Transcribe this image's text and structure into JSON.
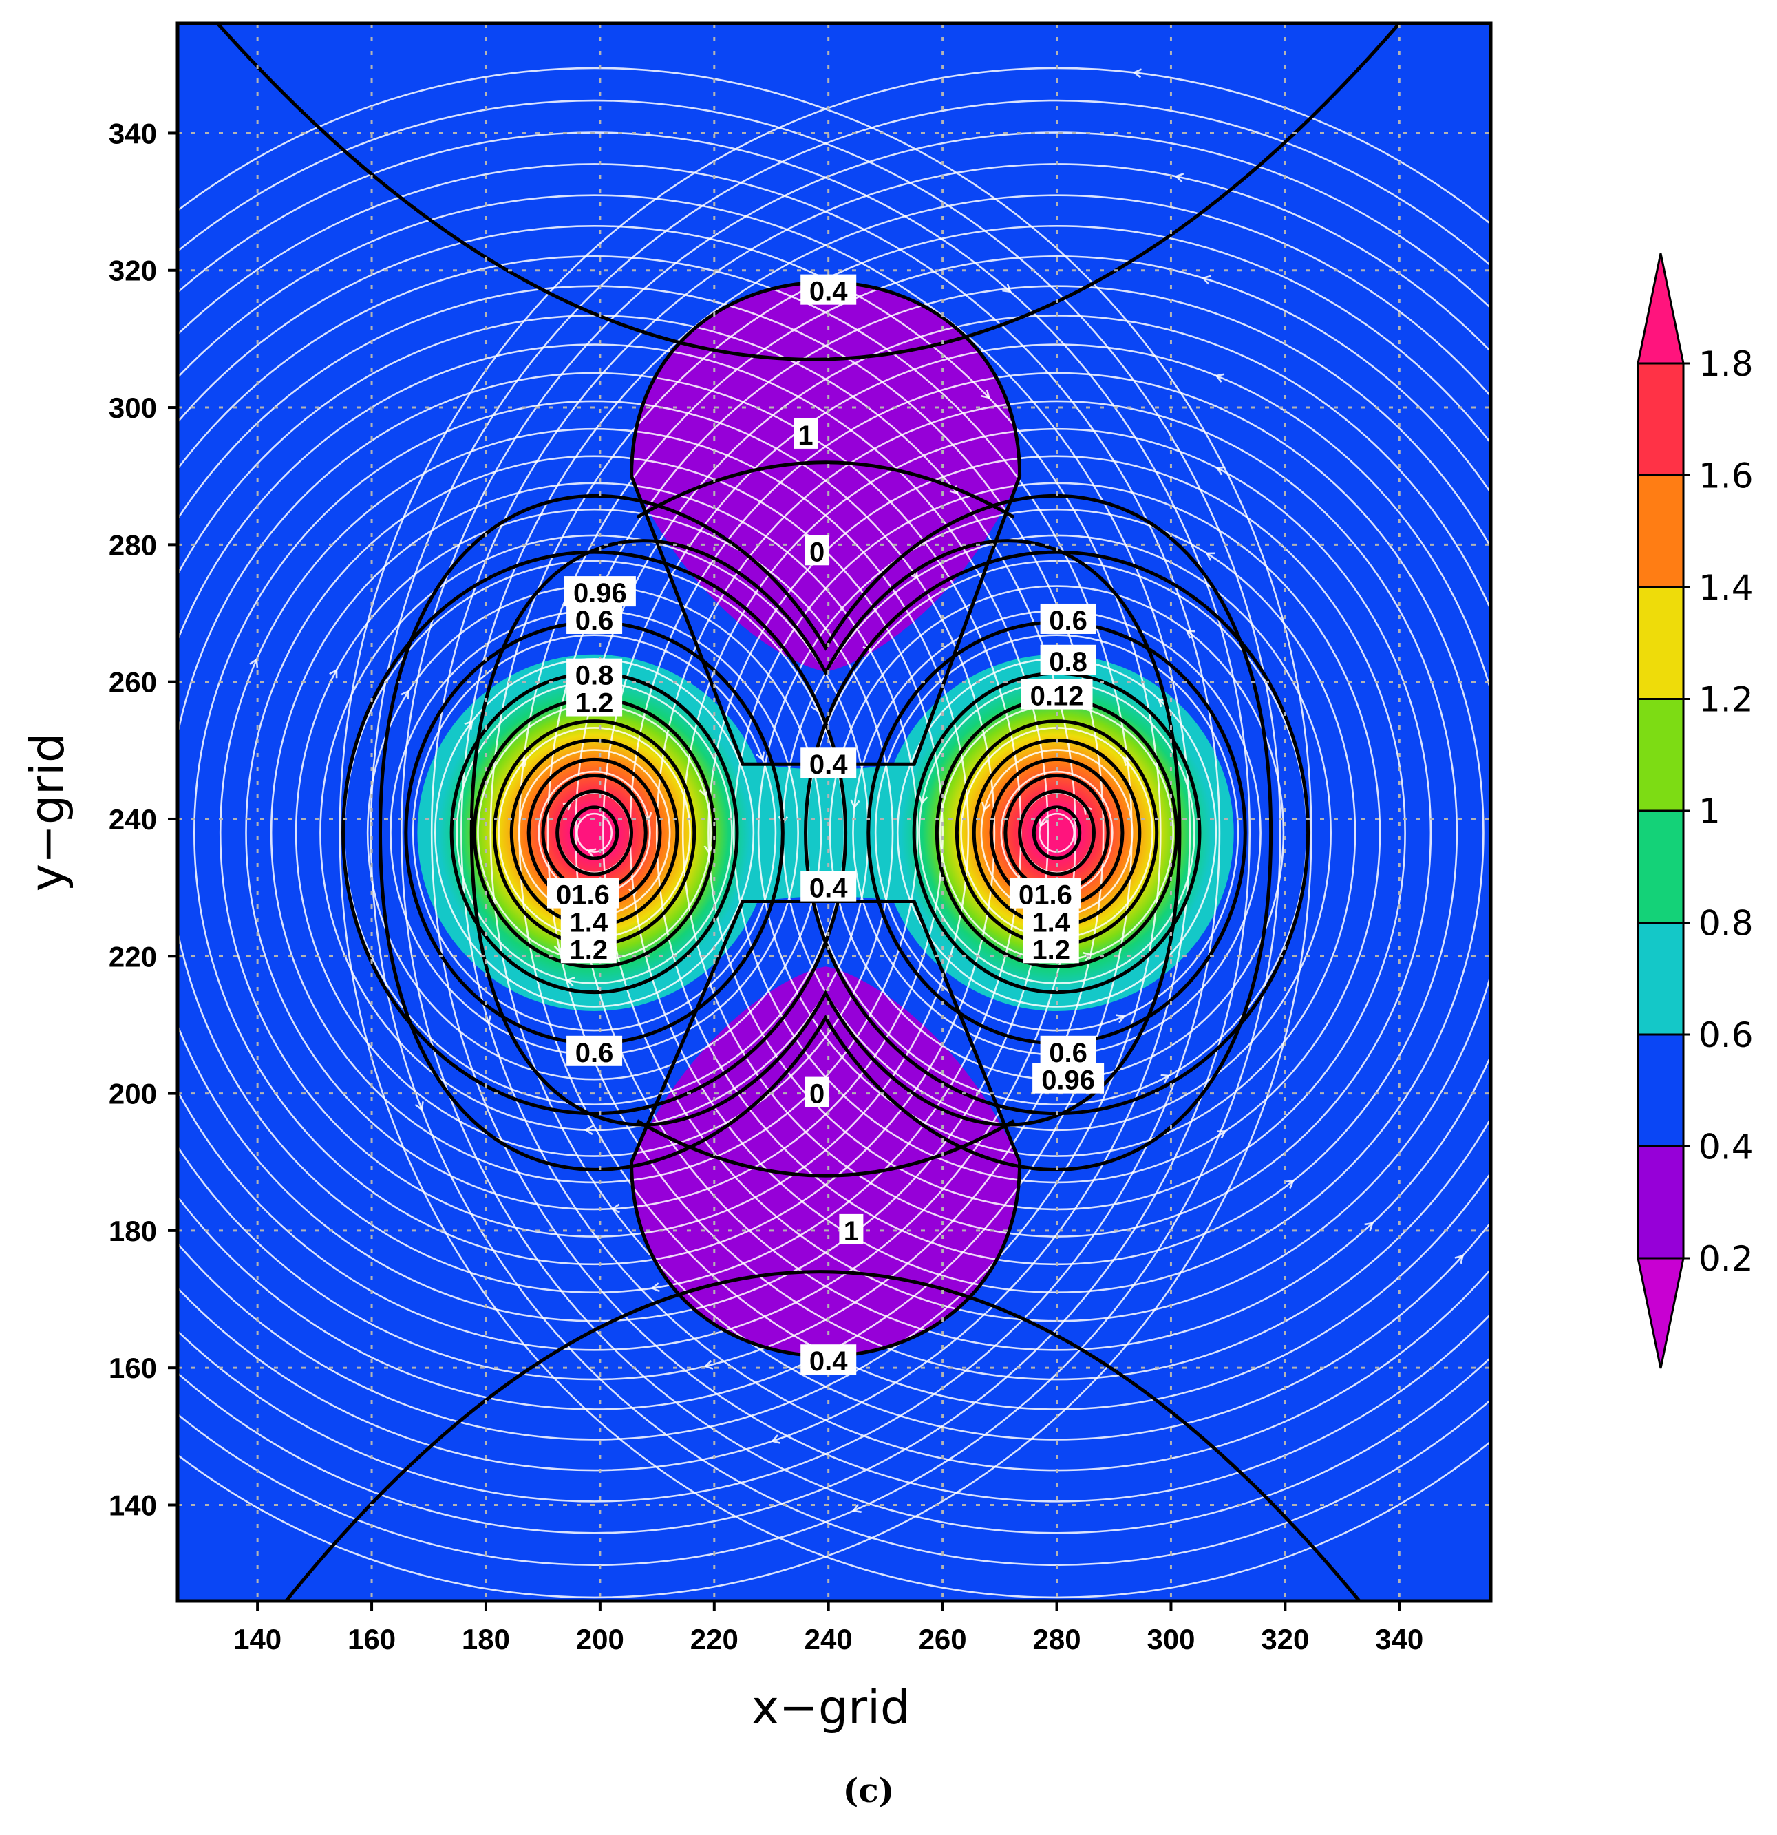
{
  "chart_data": {
    "type": "contour",
    "title": "",
    "xlabel": "x−grid",
    "ylabel": "y−grid",
    "xlim": [
      126,
      356
    ],
    "ylim": [
      126,
      356
    ],
    "x_ticks": [
      140,
      160,
      180,
      200,
      220,
      240,
      260,
      280,
      300,
      320,
      340
    ],
    "y_ticks": [
      140,
      160,
      180,
      200,
      220,
      240,
      260,
      280,
      300,
      320,
      340
    ],
    "grid": true,
    "streamlines": true,
    "colorbar": {
      "placement": "right",
      "levels": [
        0.2,
        0.4,
        0.6,
        0.8,
        1,
        1.2,
        1.4,
        1.6,
        1.8
      ],
      "labels": [
        "0.2",
        "0.4",
        "0.6",
        "0.8",
        "1",
        "1.2",
        "1.4",
        "1.6",
        "1.8"
      ],
      "colors": [
        "#c800d2",
        "#9600d8",
        "#0a46f5",
        "#14c8c8",
        "#14d278",
        "#7ddc14",
        "#eedc0a",
        "#ff7d14",
        "#ff3246",
        "#ff147d"
      ]
    },
    "centers": [
      {
        "x": 199,
        "y": 238,
        "peak": 1.8
      },
      {
        "x": 280,
        "y": 238,
        "peak": 1.8
      }
    ],
    "minima": [
      {
        "x": 238,
        "y": 290,
        "label": "0"
      },
      {
        "x": 238,
        "y": 190,
        "label": "0"
      }
    ],
    "contour_labels": [
      {
        "text": "0.4",
        "x": 240,
        "y": 317
      },
      {
        "text": "1",
        "x": 236,
        "y": 296
      },
      {
        "text": "0",
        "x": 238,
        "y": 279
      },
      {
        "text": "0.96",
        "x": 200,
        "y": 273
      },
      {
        "text": "0.6",
        "x": 199,
        "y": 269
      },
      {
        "text": "0.8",
        "x": 199,
        "y": 261
      },
      {
        "text": "1.2",
        "x": 199,
        "y": 257
      },
      {
        "text": "0.6",
        "x": 282,
        "y": 269
      },
      {
        "text": "0.8",
        "x": 282,
        "y": 263
      },
      {
        "text": "0.12",
        "x": 280,
        "y": 258
      },
      {
        "text": "0.4",
        "x": 240,
        "y": 248
      },
      {
        "text": "0.4",
        "x": 240,
        "y": 230
      },
      {
        "text": "01.6",
        "x": 197,
        "y": 229
      },
      {
        "text": "1.4",
        "x": 198,
        "y": 225
      },
      {
        "text": "1.2",
        "x": 198,
        "y": 221
      },
      {
        "text": "01.6",
        "x": 278,
        "y": 229
      },
      {
        "text": "1.4",
        "x": 279,
        "y": 225
      },
      {
        "text": "1.2",
        "x": 279,
        "y": 221
      },
      {
        "text": "0.6",
        "x": 199,
        "y": 206
      },
      {
        "text": "0.6",
        "x": 282,
        "y": 206
      },
      {
        "text": "0.96",
        "x": 282,
        "y": 202
      },
      {
        "text": "0",
        "x": 238,
        "y": 200
      },
      {
        "text": "1",
        "x": 244,
        "y": 180
      },
      {
        "text": "0.4",
        "x": 240,
        "y": 161
      }
    ]
  },
  "panel_label": "(c)"
}
